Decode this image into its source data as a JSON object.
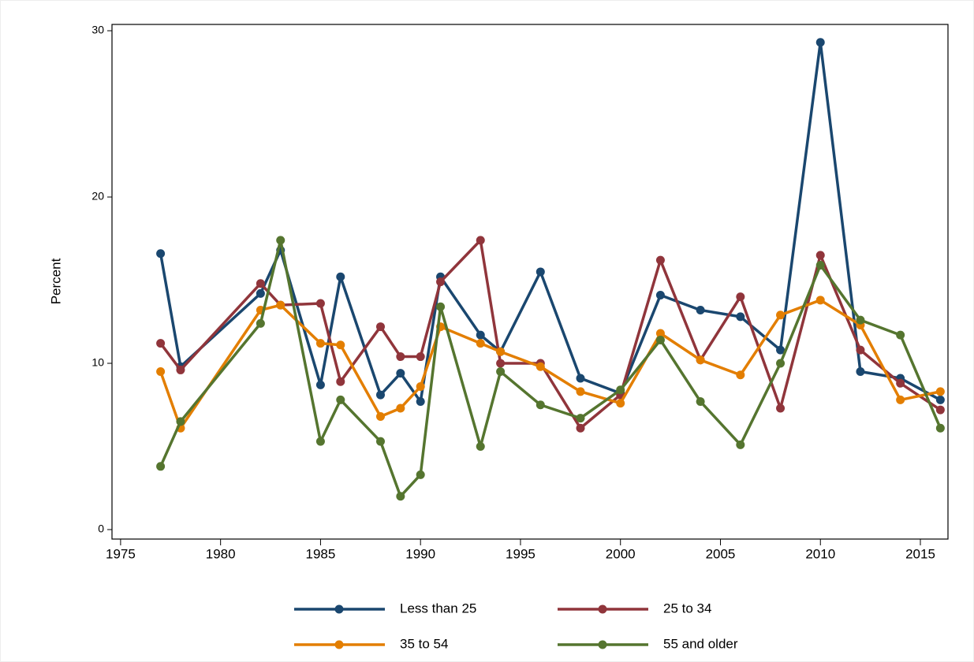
{
  "chart_data": {
    "type": "line",
    "y_label": "Percent",
    "x": [
      1977,
      1978,
      1982,
      1983,
      1985,
      1986,
      1988,
      1989,
      1990,
      1991,
      1993,
      1994,
      1996,
      1998,
      2000,
      2002,
      2004,
      2006,
      2008,
      2010,
      2012,
      2014,
      2016
    ],
    "series": [
      {
        "name": "Less than 25",
        "color": "#1a476f",
        "values": [
          16.6,
          9.8,
          14.2,
          16.8,
          8.7,
          15.2,
          8.1,
          9.4,
          7.7,
          15.2,
          11.7,
          10.7,
          15.5,
          9.1,
          8.2,
          14.1,
          13.2,
          12.8,
          10.8,
          29.3,
          9.5,
          9.1,
          7.8
        ]
      },
      {
        "name": "25 to 34",
        "color": "#90353b",
        "values": [
          11.2,
          9.6,
          14.8,
          13.5,
          13.6,
          8.9,
          12.2,
          10.4,
          10.4,
          14.9,
          17.4,
          10.0,
          10.0,
          6.1,
          8.1,
          16.2,
          10.2,
          14.0,
          7.3,
          16.5,
          10.8,
          8.8,
          7.2
        ]
      },
      {
        "name": "35 to 54",
        "color": "#e37e00",
        "values": [
          9.5,
          6.1,
          13.2,
          13.5,
          11.2,
          11.1,
          6.8,
          7.3,
          8.6,
          12.2,
          11.2,
          10.7,
          9.8,
          8.3,
          7.6,
          11.8,
          10.2,
          9.3,
          12.9,
          13.8,
          12.3,
          7.8,
          8.3
        ]
      },
      {
        "name": "55 and older",
        "color": "#55752f",
        "values": [
          3.8,
          6.5,
          12.4,
          17.4,
          5.3,
          7.8,
          5.3,
          2.0,
          3.3,
          13.4,
          5.0,
          9.5,
          7.5,
          6.7,
          8.4,
          11.4,
          7.7,
          5.1,
          10.0,
          15.9,
          12.6,
          11.7,
          6.1
        ]
      }
    ],
    "xlim": [
      1974.57,
      2016.38
    ],
    "xticks": [
      1975,
      1980,
      1985,
      1990,
      1995,
      2000,
      2005,
      2010,
      2015
    ],
    "ylim": [
      -0.57,
      30.38
    ],
    "yticks": [
      0,
      10,
      20,
      30
    ],
    "legend": "bottom"
  }
}
